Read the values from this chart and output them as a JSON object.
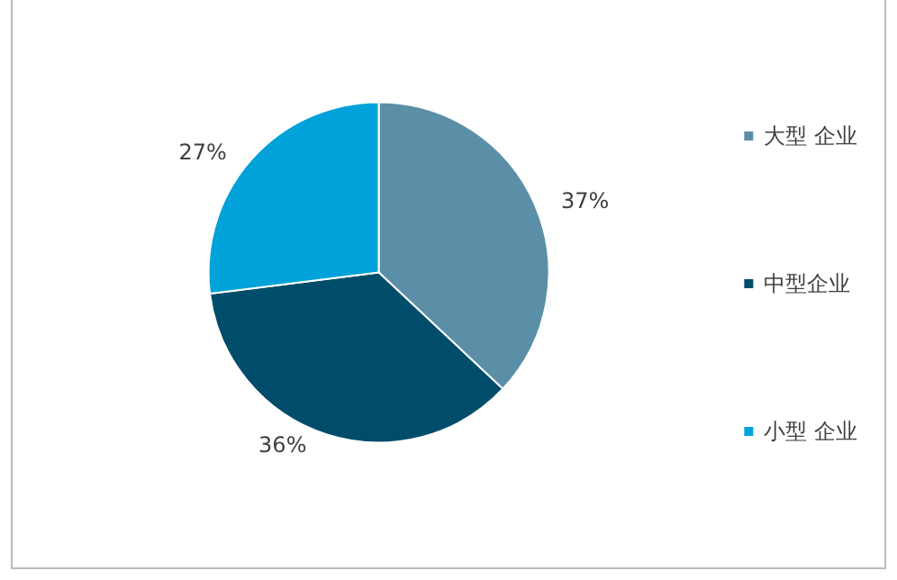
{
  "chart_data": {
    "type": "pie",
    "categories": [
      "大型 企业",
      "中型企业",
      "小型 企业"
    ],
    "values": [
      37,
      36,
      27
    ],
    "colors": [
      "#5b8fa8",
      "#004d6b",
      "#00a2d9"
    ],
    "value_labels": [
      "37%",
      "36%",
      "27%"
    ],
    "legend": "right"
  }
}
